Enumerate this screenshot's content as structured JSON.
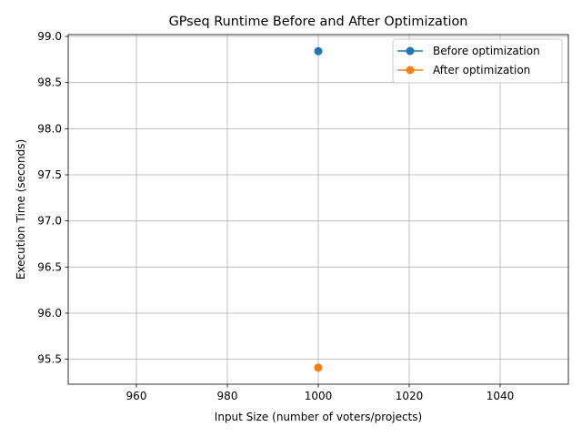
{
  "chart_data": {
    "type": "line",
    "title": "GPseq Runtime Before and After Optimization",
    "xlabel": "Input Size (number of voters/projects)",
    "ylabel": "Execution Time (seconds)",
    "xlim": [
      945,
      1055
    ],
    "ylim": [
      95.23,
      99.02
    ],
    "x_ticks": [
      960,
      980,
      1000,
      1020,
      1040
    ],
    "y_ticks": [
      95.5,
      96.0,
      96.5,
      97.0,
      97.5,
      98.0,
      98.5,
      99.0
    ],
    "x_tick_labels": [
      "960",
      "980",
      "1000",
      "1020",
      "1040"
    ],
    "y_tick_labels": [
      "95.5",
      "96.0",
      "96.5",
      "97.0",
      "97.5",
      "98.0",
      "98.5",
      "99.0"
    ],
    "grid": true,
    "legend_position": "upper-right",
    "series": [
      {
        "name": "Before optimization",
        "color": "#1f77b4",
        "marker": "circle",
        "x": [
          1000
        ],
        "y": [
          98.84
        ]
      },
      {
        "name": "After optimization",
        "color": "#ff7f0e",
        "marker": "circle",
        "x": [
          1000
        ],
        "y": [
          95.41
        ]
      }
    ]
  }
}
